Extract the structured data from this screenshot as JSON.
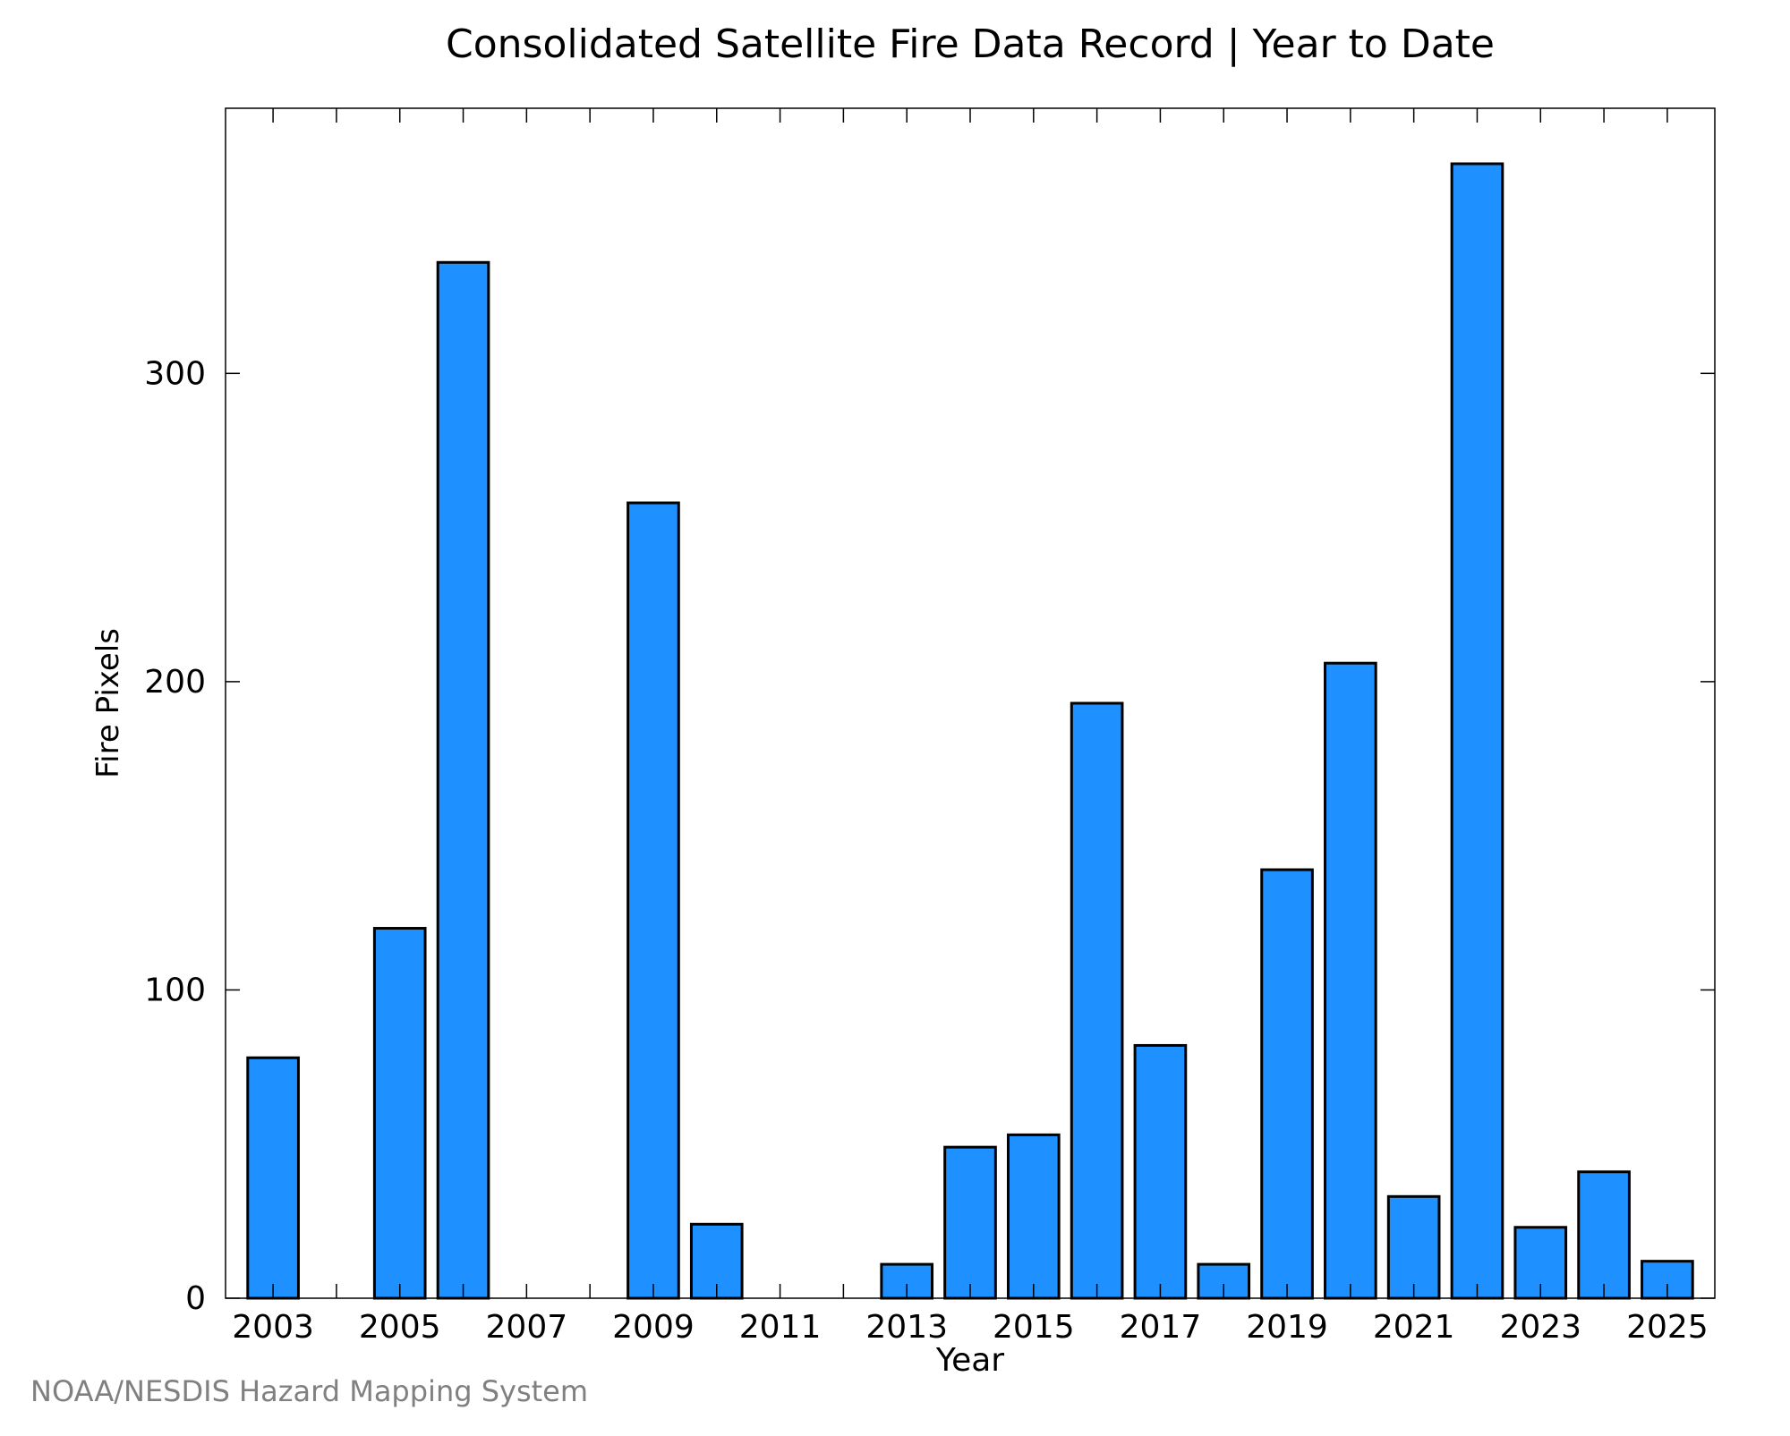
{
  "chart_data": {
    "type": "bar",
    "title": "Consolidated Satellite Fire Data Record | Year to Date",
    "xlabel": "Year",
    "ylabel": "Fire Pixels",
    "categories": [
      "2003",
      "2004",
      "2005",
      "2006",
      "2007",
      "2008",
      "2009",
      "2010",
      "2011",
      "2012",
      "2013",
      "2014",
      "2015",
      "2016",
      "2017",
      "2018",
      "2019",
      "2020",
      "2021",
      "2022",
      "2023",
      "2024",
      "2025"
    ],
    "values": [
      78,
      0,
      120,
      336,
      0,
      0,
      258,
      24,
      0,
      0,
      11,
      49,
      53,
      193,
      82,
      11,
      139,
      206,
      33,
      368,
      23,
      41,
      12
    ],
    "x_tick_labels": [
      "2003",
      "2005",
      "2007",
      "2009",
      "2011",
      "2013",
      "2015",
      "2017",
      "2019",
      "2021",
      "2023",
      "2025"
    ],
    "y_ticks": [
      0,
      100,
      200,
      300
    ],
    "y_tick_labels": [
      "0",
      "100",
      "200",
      "300"
    ],
    "ylim": [
      0,
      386
    ],
    "grid": false,
    "legend": "none",
    "bar_color": "#1e90ff",
    "bar_edge_color": "#000000"
  },
  "footer": {
    "credit": "NOAA/NESDIS Hazard Mapping System"
  }
}
